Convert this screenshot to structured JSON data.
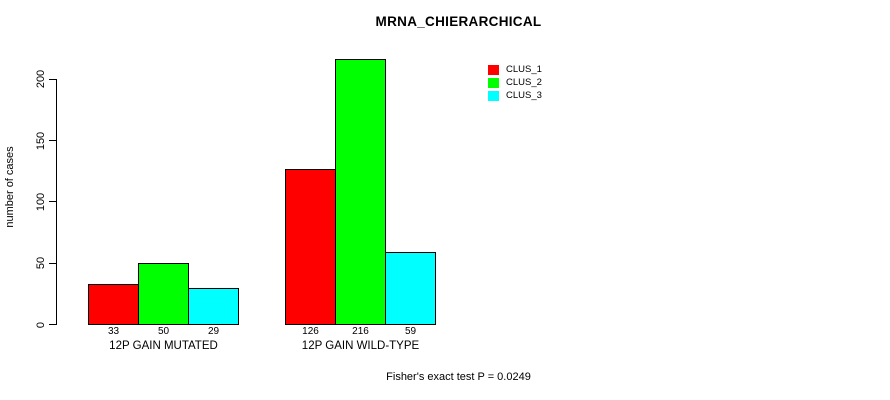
{
  "title": "MRNA_CHIERARCHICAL",
  "ylabel": "number of cases",
  "footer_note": "Fisher's exact test P = 0.0249",
  "colors": {
    "clus_1": "#ff0000",
    "clus_2": "#00ff00",
    "clus_3": "#00ffff",
    "axis": "#000000"
  },
  "legend": {
    "position": "top-right",
    "entries": [
      {
        "label": "CLUS_1",
        "color": "#ff0000"
      },
      {
        "label": "CLUS_2",
        "color": "#00ff00"
      },
      {
        "label": "CLUS_3",
        "color": "#00ffff"
      }
    ]
  },
  "chart_data": {
    "type": "bar",
    "title": "MRNA_CHIERARCHICAL",
    "xlabel": "",
    "ylabel": "number of cases",
    "categories": [
      "12P GAIN MUTATED",
      "12P GAIN WILD-TYPE"
    ],
    "series": [
      {
        "name": "CLUS_1",
        "color": "#ff0000",
        "values": [
          33,
          126
        ]
      },
      {
        "name": "CLUS_2",
        "color": "#00ff00",
        "values": [
          50,
          216
        ]
      },
      {
        "name": "CLUS_3",
        "color": "#00ffff",
        "values": [
          29,
          59
        ]
      }
    ],
    "bar_value_labels": [
      [
        "33",
        "50",
        "29"
      ],
      [
        "126",
        "216",
        "59"
      ]
    ],
    "yticks": [
      0,
      50,
      100,
      150,
      200
    ],
    "ylim": [
      0,
      220
    ],
    "grid": false,
    "legend_position": "top-right",
    "annotation": "Fisher's exact test P = 0.0249"
  }
}
